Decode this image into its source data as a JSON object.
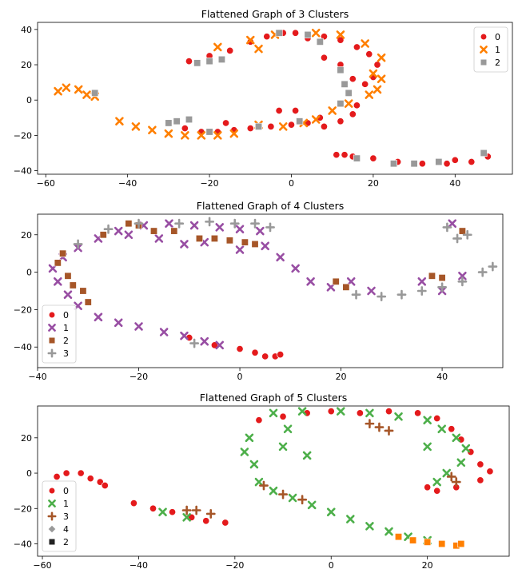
{
  "chart_data": [
    {
      "type": "scatter",
      "title": "Flattened Graph of 3 Clusters",
      "xlim": [
        -62,
        54
      ],
      "ylim": [
        -42,
        44
      ],
      "xticks": [
        -60,
        -40,
        -20,
        0,
        20,
        40
      ],
      "yticks": [
        -40,
        -20,
        0,
        20,
        40
      ],
      "legend": "top-right",
      "series": [
        {
          "name": "0",
          "color": "#e41a1c",
          "marker": "circle",
          "points": [
            [
              -25,
              22
            ],
            [
              -20,
              25
            ],
            [
              -15,
              28
            ],
            [
              -10,
              33
            ],
            [
              -6,
              36
            ],
            [
              -2,
              38
            ],
            [
              1,
              38
            ],
            [
              4,
              35
            ],
            [
              8,
              36
            ],
            [
              12,
              34
            ],
            [
              16,
              30
            ],
            [
              19,
              26
            ],
            [
              21,
              20
            ],
            [
              20,
              13
            ],
            [
              18,
              9
            ],
            [
              15,
              12
            ],
            [
              12,
              20
            ],
            [
              8,
              24
            ],
            [
              -26,
              -16
            ],
            [
              -22,
              -18
            ],
            [
              -18,
              -18
            ],
            [
              -14,
              -17
            ],
            [
              -10,
              -16
            ],
            [
              -5,
              -15
            ],
            [
              0,
              -14
            ],
            [
              4,
              -13
            ],
            [
              8,
              -15
            ],
            [
              12,
              -12
            ],
            [
              15,
              -8
            ],
            [
              16,
              -3
            ],
            [
              -3,
              -6
            ],
            [
              1,
              -6
            ],
            [
              -16,
              -13
            ],
            [
              7,
              -10
            ],
            [
              11,
              -31
            ],
            [
              15,
              -32
            ],
            [
              20,
              -33
            ],
            [
              26,
              -35
            ],
            [
              32,
              -36
            ],
            [
              38,
              -36
            ],
            [
              44,
              -35
            ],
            [
              48,
              -32
            ],
            [
              13,
              -31
            ],
            [
              40,
              -34
            ]
          ]
        },
        {
          "name": "1",
          "color": "#ff7f00",
          "marker": "cross",
          "points": [
            [
              -57,
              5
            ],
            [
              -55,
              7
            ],
            [
              -52,
              6
            ],
            [
              -50,
              3
            ],
            [
              -48,
              2
            ],
            [
              -42,
              -12
            ],
            [
              -38,
              -15
            ],
            [
              -34,
              -17
            ],
            [
              -30,
              -19
            ],
            [
              -26,
              -20
            ],
            [
              -22,
              -20
            ],
            [
              -18,
              -20
            ],
            [
              -14,
              -19
            ],
            [
              -8,
              -14
            ],
            [
              -2,
              -15
            ],
            [
              3,
              -13
            ],
            [
              6,
              -11
            ],
            [
              10,
              -6
            ],
            [
              14,
              -2
            ],
            [
              19,
              3
            ],
            [
              21,
              6
            ],
            [
              22,
              12
            ],
            [
              -18,
              30
            ],
            [
              -10,
              34
            ],
            [
              -4,
              37
            ],
            [
              6,
              38
            ],
            [
              12,
              37
            ],
            [
              18,
              32
            ],
            [
              22,
              24
            ],
            [
              20,
              15
            ],
            [
              -8,
              29
            ]
          ]
        },
        {
          "name": "2",
          "color": "#999999",
          "marker": "square",
          "points": [
            [
              -48,
              4
            ],
            [
              -30,
              -13
            ],
            [
              -28,
              -12
            ],
            [
              -25,
              -11
            ],
            [
              -20,
              -18
            ],
            [
              -8,
              -15
            ],
            [
              2,
              -12
            ],
            [
              -23,
              21
            ],
            [
              -20,
              22
            ],
            [
              -17,
              23
            ],
            [
              -3,
              38
            ],
            [
              4,
              37
            ],
            [
              7,
              33
            ],
            [
              12,
              17
            ],
            [
              13,
              9
            ],
            [
              14,
              4
            ],
            [
              12,
              -2
            ],
            [
              25,
              -36
            ],
            [
              30,
              -36
            ],
            [
              47,
              -30
            ],
            [
              16,
              -33
            ],
            [
              36,
              -35
            ]
          ]
        }
      ]
    },
    {
      "type": "scatter",
      "title": "Flattened Graph of 4 Clusters",
      "xlim": [
        -40,
        52
      ],
      "ylim": [
        -51,
        31
      ],
      "xticks": [
        -40,
        -20,
        0,
        20,
        40
      ],
      "yticks": [
        -40,
        -20,
        0,
        20
      ],
      "legend": "bottom-left",
      "series": [
        {
          "name": "0",
          "color": "#e41a1c",
          "marker": "circle",
          "points": [
            [
              -10,
              -35
            ],
            [
              -5,
              -39
            ],
            [
              0,
              -41
            ],
            [
              3,
              -43
            ],
            [
              5,
              -45
            ],
            [
              7,
              -45
            ],
            [
              8,
              -44
            ]
          ]
        },
        {
          "name": "1",
          "color": "#984ea3",
          "marker": "cross",
          "points": [
            [
              -37,
              2
            ],
            [
              -36,
              -5
            ],
            [
              -34,
              -12
            ],
            [
              -32,
              -18
            ],
            [
              -28,
              -24
            ],
            [
              -24,
              -27
            ],
            [
              -20,
              -29
            ],
            [
              -15,
              -32
            ],
            [
              -11,
              -34
            ],
            [
              -7,
              -37
            ],
            [
              -4,
              -39
            ],
            [
              -35,
              8
            ],
            [
              -32,
              13
            ],
            [
              -28,
              18
            ],
            [
              -24,
              22
            ],
            [
              -19,
              25
            ],
            [
              -14,
              26
            ],
            [
              -9,
              25
            ],
            [
              -4,
              24
            ],
            [
              0,
              23
            ],
            [
              4,
              22
            ],
            [
              5,
              14
            ],
            [
              8,
              8
            ],
            [
              11,
              2
            ],
            [
              14,
              -5
            ],
            [
              18,
              -8
            ],
            [
              22,
              -5
            ],
            [
              26,
              -10
            ],
            [
              -22,
              20
            ],
            [
              -16,
              18
            ],
            [
              -11,
              15
            ],
            [
              -7,
              16
            ],
            [
              0,
              12
            ],
            [
              36,
              -5
            ],
            [
              40,
              -10
            ],
            [
              44,
              -2
            ],
            [
              42,
              26
            ]
          ]
        },
        {
          "name": "2",
          "color": "#a65628",
          "marker": "square",
          "points": [
            [
              -36,
              5
            ],
            [
              -35,
              10
            ],
            [
              -34,
              -2
            ],
            [
              -33,
              -7
            ],
            [
              -31,
              -10
            ],
            [
              -30,
              -16
            ],
            [
              -27,
              20
            ],
            [
              -22,
              26
            ],
            [
              -20,
              25
            ],
            [
              -17,
              22
            ],
            [
              -13,
              22
            ],
            [
              -8,
              18
            ],
            [
              -5,
              18
            ],
            [
              -2,
              17
            ],
            [
              1,
              16
            ],
            [
              3,
              15
            ],
            [
              19,
              -5
            ],
            [
              21,
              -8
            ],
            [
              38,
              -2
            ],
            [
              40,
              -3
            ],
            [
              44,
              22
            ]
          ]
        },
        {
          "name": "3",
          "color": "#999999",
          "marker": "plus",
          "points": [
            [
              -32,
              15
            ],
            [
              -26,
              23
            ],
            [
              -20,
              26
            ],
            [
              -12,
              26
            ],
            [
              -6,
              27
            ],
            [
              -1,
              26
            ],
            [
              3,
              26
            ],
            [
              6,
              24
            ],
            [
              23,
              -12
            ],
            [
              28,
              -13
            ],
            [
              32,
              -12
            ],
            [
              36,
              -10
            ],
            [
              40,
              -8
            ],
            [
              44,
              -5
            ],
            [
              48,
              0
            ],
            [
              50,
              3
            ],
            [
              41,
              24
            ],
            [
              43,
              18
            ],
            [
              45,
              20
            ],
            [
              -9,
              -38
            ]
          ]
        }
      ]
    },
    {
      "type": "scatter",
      "title": "Flattened Graph of 5 Clusters",
      "xlim": [
        -61,
        37
      ],
      "ylim": [
        -47,
        38
      ],
      "xticks": [
        -60,
        -40,
        -20,
        0,
        20
      ],
      "yticks": [
        -40,
        -20,
        0,
        20
      ],
      "legend": "bottom-left",
      "series": [
        {
          "name": "0",
          "color": "#e41a1c",
          "marker": "circle",
          "points": [
            [
              -57,
              -2
            ],
            [
              -55,
              0
            ],
            [
              -52,
              0
            ],
            [
              -50,
              -3
            ],
            [
              -48,
              -5
            ],
            [
              -47,
              -7
            ],
            [
              -41,
              -17
            ],
            [
              -37,
              -20
            ],
            [
              -33,
              -22
            ],
            [
              -29,
              -25
            ],
            [
              -26,
              -27
            ],
            [
              -22,
              -28
            ],
            [
              -15,
              30
            ],
            [
              -10,
              32
            ],
            [
              -5,
              34
            ],
            [
              0,
              35
            ],
            [
              6,
              34
            ],
            [
              12,
              35
            ],
            [
              18,
              34
            ],
            [
              22,
              31
            ],
            [
              25,
              25
            ],
            [
              27,
              19
            ],
            [
              29,
              12
            ],
            [
              31,
              5
            ],
            [
              33,
              1
            ],
            [
              31,
              -4
            ],
            [
              26,
              -8
            ],
            [
              22,
              -10
            ],
            [
              20,
              -8
            ]
          ]
        },
        {
          "name": "1",
          "color": "#4daf4a",
          "marker": "cross",
          "points": [
            [
              -17,
              20
            ],
            [
              -18,
              12
            ],
            [
              -16,
              5
            ],
            [
              -15,
              -5
            ],
            [
              -12,
              -10
            ],
            [
              -8,
              -14
            ],
            [
              -4,
              -18
            ],
            [
              0,
              -22
            ],
            [
              4,
              -26
            ],
            [
              8,
              -30
            ],
            [
              12,
              -33
            ],
            [
              16,
              -36
            ],
            [
              20,
              -38
            ],
            [
              -12,
              34
            ],
            [
              -6,
              35
            ],
            [
              2,
              35
            ],
            [
              8,
              34
            ],
            [
              14,
              32
            ],
            [
              20,
              30
            ],
            [
              23,
              25
            ],
            [
              26,
              20
            ],
            [
              28,
              14
            ],
            [
              27,
              6
            ],
            [
              24,
              0
            ],
            [
              22,
              -5
            ],
            [
              -10,
              15
            ],
            [
              -5,
              10
            ],
            [
              -30,
              -25
            ],
            [
              -35,
              -22
            ],
            [
              20,
              15
            ],
            [
              -9,
              25
            ]
          ]
        },
        {
          "name": "3",
          "color": "#a65628",
          "marker": "plus",
          "points": [
            [
              -14,
              -7
            ],
            [
              -10,
              -12
            ],
            [
              -6,
              -15
            ],
            [
              8,
              28
            ],
            [
              10,
              26
            ],
            [
              12,
              24
            ],
            [
              26,
              -5
            ],
            [
              25,
              -2
            ],
            [
              -30,
              -21
            ],
            [
              -28,
              -21
            ],
            [
              -25,
              -23
            ]
          ]
        },
        {
          "name": "4",
          "color": "#999999",
          "marker": "diamond",
          "points": []
        },
        {
          "name": "2",
          "color": "#222222",
          "marker": "square",
          "points": []
        },
        {
          "name": "",
          "color": "#ff7f00",
          "marker": "square",
          "points": [
            [
              14,
              -36
            ],
            [
              17,
              -38
            ],
            [
              20,
              -39
            ],
            [
              23,
              -40
            ],
            [
              26,
              -41
            ],
            [
              27,
              -40
            ]
          ]
        }
      ]
    }
  ]
}
